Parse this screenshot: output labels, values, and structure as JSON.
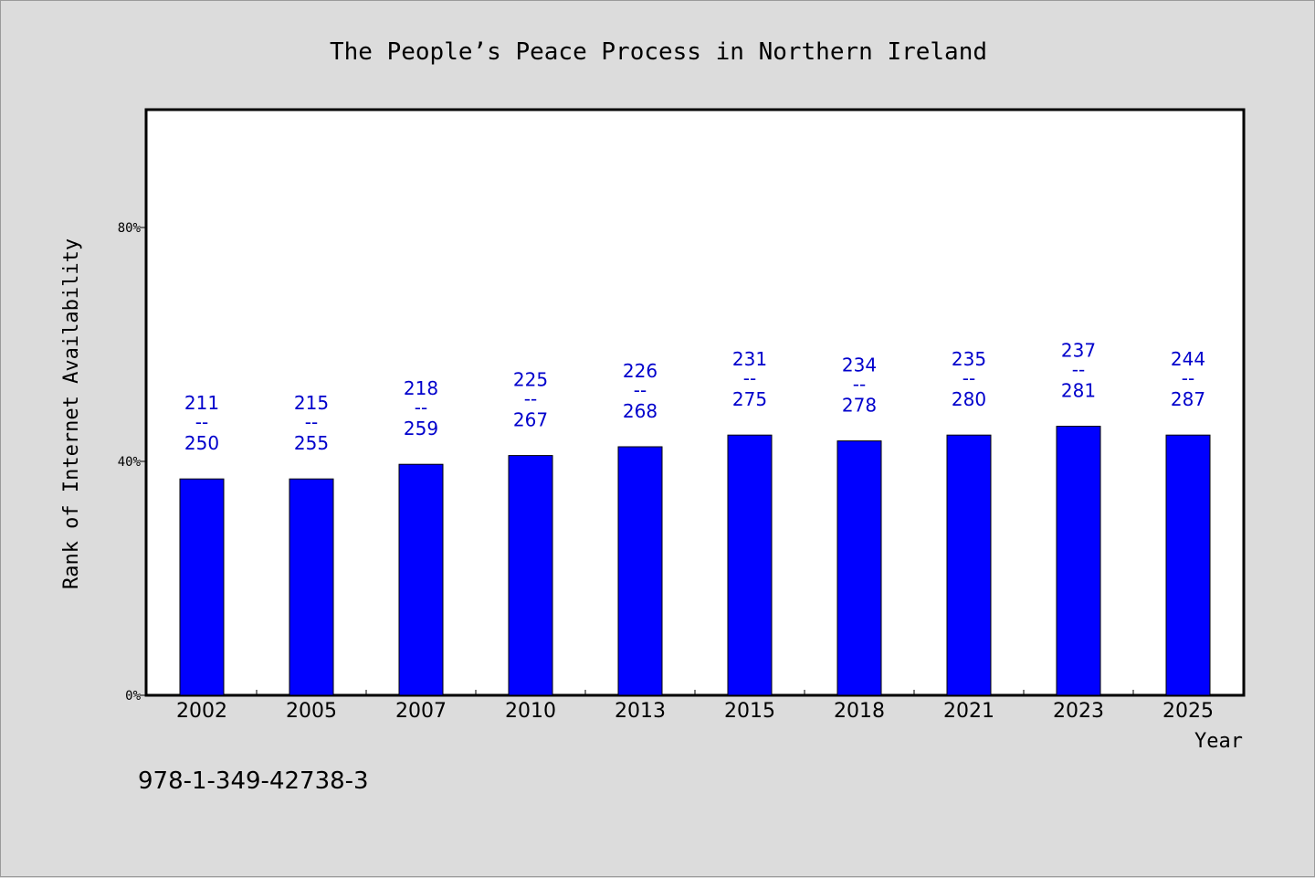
{
  "chart_data": {
    "type": "bar",
    "title": "The People’s Peace Process in Northern Ireland",
    "xlabel": "Year",
    "ylabel": "Rank of Internet Availability",
    "categories": [
      "2002",
      "2005",
      "2007",
      "2010",
      "2013",
      "2015",
      "2018",
      "2021",
      "2023",
      "2025"
    ],
    "values": [
      37,
      37,
      39.5,
      41,
      42.5,
      44.5,
      43.5,
      44.5,
      46,
      44.5
    ],
    "bar_labels": [
      {
        "low": "211",
        "sep": "--",
        "high": "250"
      },
      {
        "low": "215",
        "sep": "--",
        "high": "255"
      },
      {
        "low": "218",
        "sep": "--",
        "high": "259"
      },
      {
        "low": "225",
        "sep": "--",
        "high": "267"
      },
      {
        "low": "226",
        "sep": "--",
        "high": "268"
      },
      {
        "low": "231",
        "sep": "--",
        "high": "275"
      },
      {
        "low": "234",
        "sep": "--",
        "high": "278"
      },
      {
        "low": "235",
        "sep": "--",
        "high": "280"
      },
      {
        "low": "237",
        "sep": "--",
        "high": "281"
      },
      {
        "low": "244",
        "sep": "--",
        "high": "287"
      }
    ],
    "ylim": [
      0,
      100
    ],
    "yticks": [
      0,
      40,
      80
    ],
    "ytick_labels": [
      "0%",
      "40%",
      "80%"
    ],
    "grid": false,
    "legend": "none",
    "colors": {
      "bar": "#0000ff",
      "bar_label": "#0000cc",
      "background": "#dcdcdc",
      "plot_area": "#ffffff"
    }
  },
  "footnote": "978-1-349-42738-3"
}
